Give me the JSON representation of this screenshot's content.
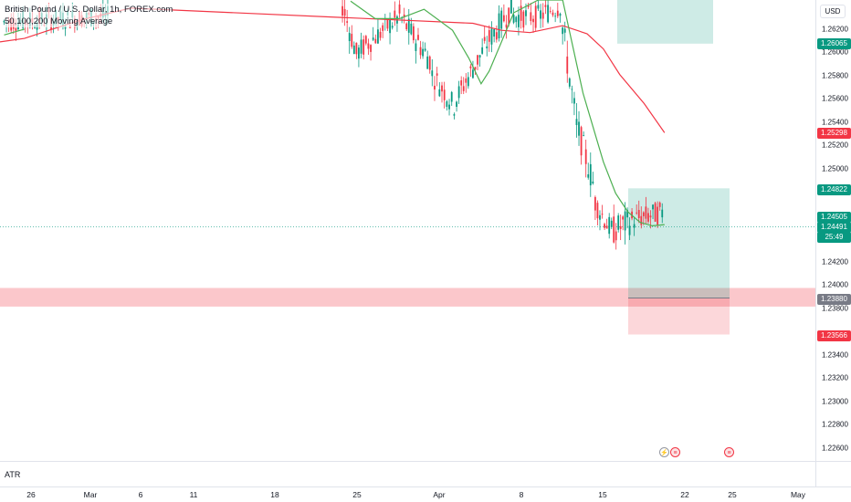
{
  "legend": {
    "title": "British Pound / U.S. Dollar, 1h, FOREX.com",
    "indicator": "50,100,200 Moving Average"
  },
  "currency": "USD",
  "colors": {
    "bull": "#089981",
    "bear": "#f23645",
    "ma_short": "#4caf50",
    "ma_long": "#f23645",
    "profit_zone": "rgba(8,153,129,0.2)",
    "loss_zone": "rgba(242,54,69,0.2)",
    "support_zone": "rgba(242,54,69,0.28)"
  },
  "price_ticks": [
    "1.26200",
    "1.26000",
    "1.25800",
    "1.25600",
    "1.25400",
    "1.25200",
    "1.25000",
    "1.24200",
    "1.24000",
    "1.23800",
    "1.23400",
    "1.23200",
    "1.23000",
    "1.22800",
    "1.22600"
  ],
  "price_badges": [
    {
      "label": "1.26065",
      "color": "#089981"
    },
    {
      "label": "1.25298",
      "color": "#f23645"
    },
    {
      "label": "1.24822",
      "color": "#089981"
    },
    {
      "label": "1.24505",
      "color": "#089981"
    },
    {
      "label": "1.24491",
      "color": "#089981"
    },
    {
      "label": "25:49",
      "color": "#089981"
    },
    {
      "label": "1.23880",
      "color": "#787b86"
    },
    {
      "label": "1.23566",
      "color": "#f23645"
    }
  ],
  "time_ticks": [
    "26",
    "Mar",
    "6",
    "11",
    "18",
    "25",
    "Apr",
    "8",
    "15",
    "22",
    "25",
    "May"
  ],
  "atr_label": "ATR",
  "chart": {
    "price_range": [
      1.2248,
      1.2644
    ],
    "current_price": 1.24491,
    "support_zone": [
      1.23806,
      1.23966
    ],
    "long_position": {
      "entry": 1.2388,
      "target": 1.24822,
      "stop": 1.23566
    },
    "upper_target_zone": [
      1.26065,
      1.2644
    ],
    "ma_fast": [
      [
        0.005,
        1.2614
      ],
      [
        0.02,
        1.2617
      ],
      [
        0.03,
        1.2619
      ]
    ],
    "ma_short_path": [
      [
        0.43,
        1.2643
      ],
      [
        0.46,
        1.2628
      ],
      [
        0.49,
        1.2628
      ],
      [
        0.52,
        1.2636
      ],
      [
        0.555,
        1.2618
      ],
      [
        0.575,
        1.2594
      ],
      [
        0.59,
        1.2572
      ],
      [
        0.6,
        1.2583
      ],
      [
        0.63,
        1.2633
      ],
      [
        0.66,
        1.2644
      ],
      [
        0.69,
        1.2644
      ],
      [
        0.715,
        1.2564
      ],
      [
        0.74,
        1.2505
      ],
      [
        0.755,
        1.2478
      ],
      [
        0.77,
        1.2462
      ],
      [
        0.785,
        1.2453
      ],
      [
        0.8,
        1.245
      ],
      [
        0.815,
        1.2451
      ]
    ],
    "ma_long_path": [
      [
        0.0,
        1.2608
      ],
      [
        0.03,
        1.2611
      ],
      [
        0.06,
        1.2618
      ],
      [
        0.1,
        1.2627
      ],
      [
        0.13,
        1.2632
      ],
      [
        0.16,
        1.2637
      ],
      [
        0.58,
        1.2624
      ],
      [
        0.615,
        1.2618
      ],
      [
        0.65,
        1.2616
      ],
      [
        0.69,
        1.2622
      ],
      [
        0.72,
        1.2615
      ],
      [
        0.74,
        1.2602
      ],
      [
        0.76,
        1.258
      ],
      [
        0.79,
        1.2555
      ],
      [
        0.815,
        1.253
      ]
    ]
  }
}
